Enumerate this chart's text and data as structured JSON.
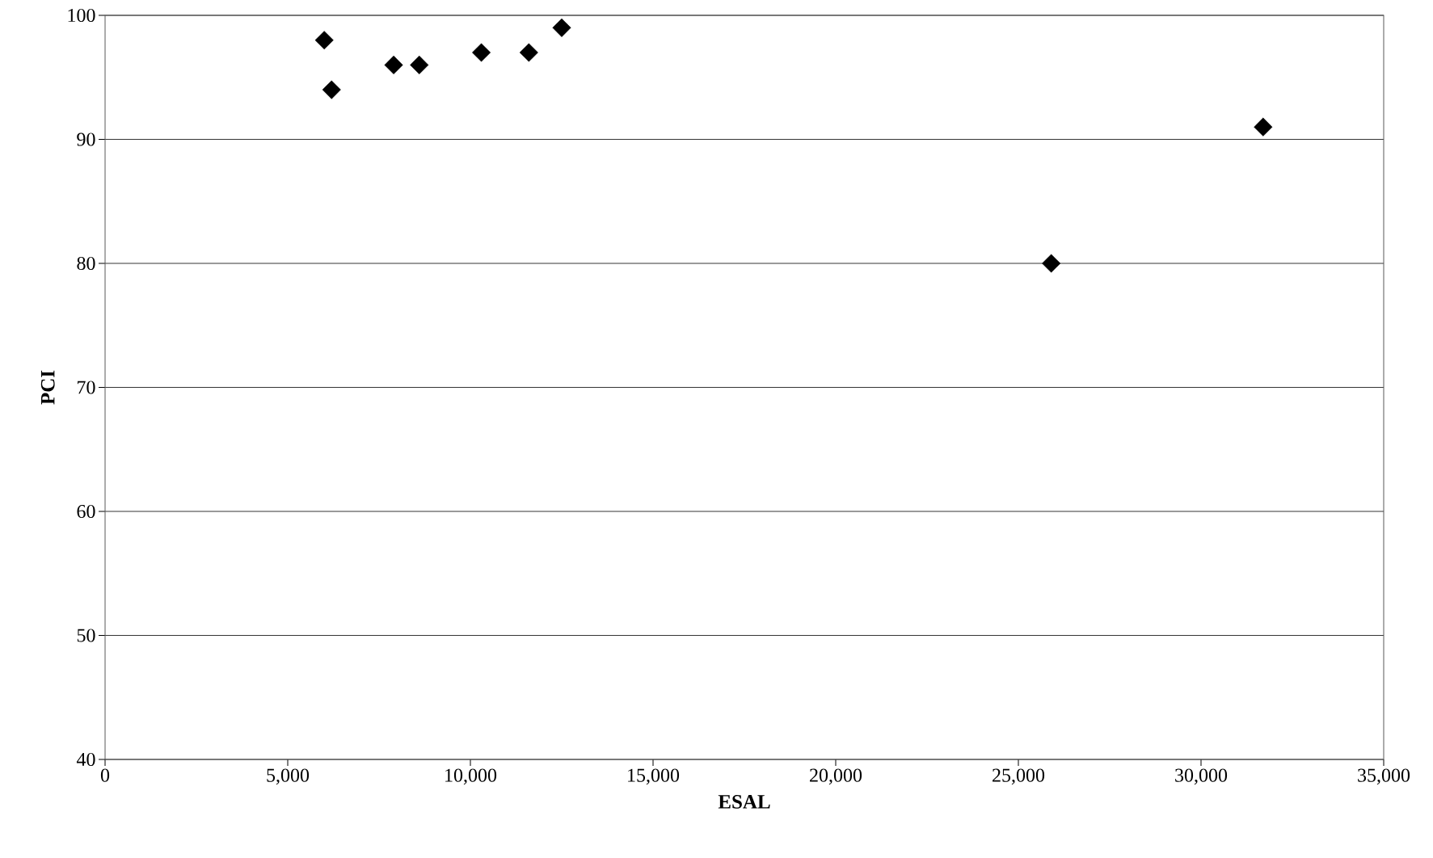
{
  "chart_data": {
    "type": "scatter",
    "xlabel": "ESAL",
    "ylabel": "PCI",
    "series": [
      {
        "color": "#000000",
        "x": [
          6000,
          6200,
          7900,
          8600,
          10300,
          11600,
          12500,
          25900,
          31700
        ],
        "values": [
          98,
          94,
          96,
          96,
          97,
          97,
          99,
          80,
          91
        ]
      }
    ],
    "marker": "diamond",
    "grid": "y",
    "xlim": [
      0,
      35000
    ],
    "ylim": [
      40,
      100
    ],
    "xticks": [
      0,
      {
        "value": 5000,
        "label": "5,000"
      },
      {
        "value": 10000,
        "label": "10,000"
      },
      {
        "value": 15000,
        "label": "15,000"
      },
      {
        "value": 20000,
        "label": "20,000"
      },
      {
        "value": 25000,
        "label": "25,000"
      },
      {
        "value": 30000,
        "label": "30,000"
      },
      {
        "value": 35000,
        "label": "35,000"
      }
    ],
    "yticks": [
      40,
      50,
      60,
      70,
      80,
      90,
      100
    ]
  }
}
